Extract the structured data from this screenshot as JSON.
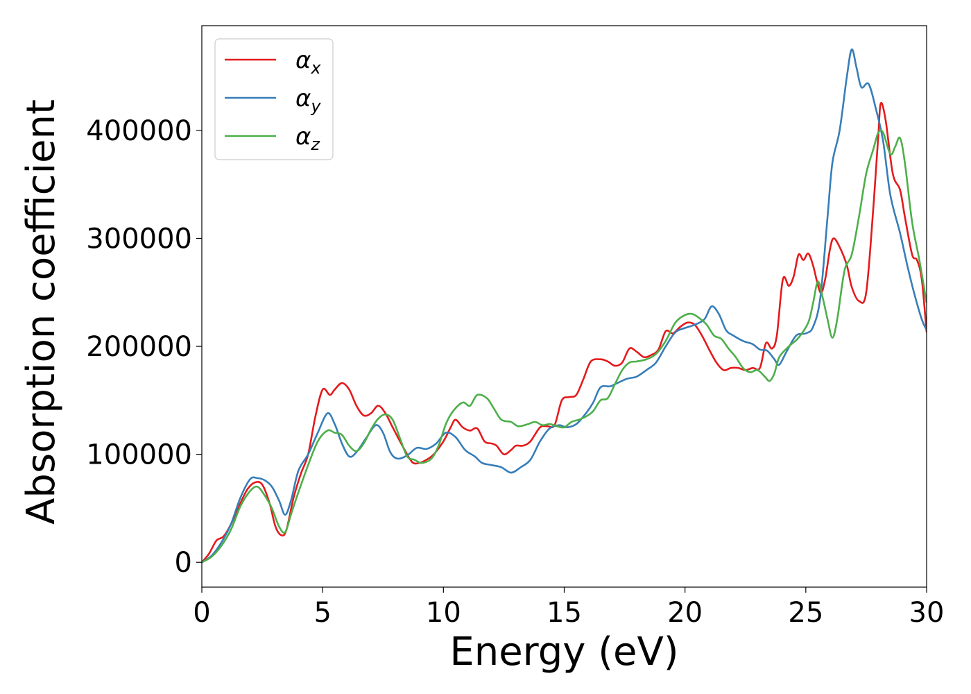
{
  "chart_data": {
    "type": "line",
    "title": "",
    "xlabel": "Energy (eV)",
    "ylabel": "Absorption coefficient",
    "xlim": [
      0,
      30
    ],
    "ylim": [
      -23000,
      497000
    ],
    "xticks": [
      0,
      5,
      10,
      15,
      20,
      25,
      30
    ],
    "xtick_labels": [
      "0",
      "5",
      "10",
      "15",
      "20",
      "25",
      "30"
    ],
    "yticks": [
      0,
      100000,
      200000,
      300000,
      400000
    ],
    "ytick_labels": [
      "0",
      "100000",
      "200000",
      "300000",
      "400000"
    ],
    "grid": false,
    "legend_position": "top-left",
    "series": [
      {
        "name": "α",
        "subscript": "x",
        "color": "#e41a1c",
        "points": [
          [
            0,
            0
          ],
          [
            0.3,
            8000
          ],
          [
            0.6,
            20000
          ],
          [
            0.9,
            24000
          ],
          [
            1.2,
            35000
          ],
          [
            1.6,
            55000
          ],
          [
            1.9,
            68000
          ],
          [
            2.2,
            74000
          ],
          [
            2.5,
            72000
          ],
          [
            2.8,
            55000
          ],
          [
            3.05,
            33000
          ],
          [
            3.3,
            25000
          ],
          [
            3.5,
            30000
          ],
          [
            3.8,
            60000
          ],
          [
            4.1,
            82000
          ],
          [
            4.4,
            100000
          ],
          [
            4.7,
            135000
          ],
          [
            5.0,
            160000
          ],
          [
            5.3,
            155000
          ],
          [
            5.5,
            160000
          ],
          [
            5.8,
            166000
          ],
          [
            6.1,
            160000
          ],
          [
            6.4,
            145000
          ],
          [
            6.7,
            136000
          ],
          [
            7.0,
            138000
          ],
          [
            7.3,
            145000
          ],
          [
            7.6,
            138000
          ],
          [
            7.9,
            125000
          ],
          [
            8.3,
            108000
          ],
          [
            8.7,
            93000
          ],
          [
            9.0,
            92000
          ],
          [
            9.3,
            95000
          ],
          [
            9.6,
            100000
          ],
          [
            10.0,
            112000
          ],
          [
            10.3,
            125000
          ],
          [
            10.5,
            132000
          ],
          [
            10.8,
            125000
          ],
          [
            11.1,
            122000
          ],
          [
            11.4,
            124000
          ],
          [
            11.7,
            112000
          ],
          [
            12.0,
            110000
          ],
          [
            12.2,
            108000
          ],
          [
            12.5,
            100000
          ],
          [
            12.8,
            104000
          ],
          [
            13.0,
            108000
          ],
          [
            13.3,
            108000
          ],
          [
            13.6,
            112000
          ],
          [
            14.0,
            125000
          ],
          [
            14.3,
            126000
          ],
          [
            14.6,
            127000
          ],
          [
            14.9,
            150000
          ],
          [
            15.2,
            153000
          ],
          [
            15.5,
            155000
          ],
          [
            15.8,
            170000
          ],
          [
            16.1,
            186000
          ],
          [
            16.5,
            188000
          ],
          [
            16.8,
            186000
          ],
          [
            17.1,
            182000
          ],
          [
            17.4,
            185000
          ],
          [
            17.7,
            198000
          ],
          [
            18.0,
            195000
          ],
          [
            18.3,
            190000
          ],
          [
            18.6,
            192000
          ],
          [
            18.9,
            197000
          ],
          [
            19.2,
            214000
          ],
          [
            19.5,
            212000
          ],
          [
            19.8,
            218000
          ],
          [
            20.1,
            222000
          ],
          [
            20.4,
            220000
          ],
          [
            20.7,
            210000
          ],
          [
            21.0,
            197000
          ],
          [
            21.3,
            185000
          ],
          [
            21.6,
            178000
          ],
          [
            21.9,
            180000
          ],
          [
            22.2,
            180000
          ],
          [
            22.5,
            178000
          ],
          [
            22.8,
            180000
          ],
          [
            23.1,
            180000
          ],
          [
            23.35,
            203000
          ],
          [
            23.6,
            198000
          ],
          [
            23.8,
            210000
          ],
          [
            24.05,
            262000
          ],
          [
            24.3,
            256000
          ],
          [
            24.5,
            265000
          ],
          [
            24.7,
            285000
          ],
          [
            24.9,
            280000
          ],
          [
            25.1,
            286000
          ],
          [
            25.3,
            275000
          ],
          [
            25.6,
            250000
          ],
          [
            25.8,
            262000
          ],
          [
            26.0,
            290000
          ],
          [
            26.15,
            300000
          ],
          [
            26.4,
            292000
          ],
          [
            26.7,
            275000
          ],
          [
            26.9,
            255000
          ],
          [
            27.2,
            242000
          ],
          [
            27.5,
            250000
          ],
          [
            27.8,
            330000
          ],
          [
            28.0,
            395000
          ],
          [
            28.1,
            425000
          ],
          [
            28.3,
            410000
          ],
          [
            28.6,
            360000
          ],
          [
            28.9,
            345000
          ],
          [
            29.1,
            320000
          ],
          [
            29.4,
            285000
          ],
          [
            29.6,
            280000
          ],
          [
            29.8,
            262000
          ],
          [
            30.0,
            213000
          ]
        ]
      },
      {
        "name": "α",
        "subscript": "y",
        "color": "#377eb8",
        "points": [
          [
            0,
            0
          ],
          [
            0.4,
            6000
          ],
          [
            0.8,
            18000
          ],
          [
            1.2,
            35000
          ],
          [
            1.6,
            60000
          ],
          [
            2.0,
            77000
          ],
          [
            2.3,
            78000
          ],
          [
            2.6,
            76000
          ],
          [
            2.9,
            70000
          ],
          [
            3.2,
            57000
          ],
          [
            3.45,
            44000
          ],
          [
            3.7,
            58000
          ],
          [
            4.0,
            85000
          ],
          [
            4.4,
            100000
          ],
          [
            4.8,
            120000
          ],
          [
            5.2,
            138000
          ],
          [
            5.5,
            128000
          ],
          [
            5.8,
            110000
          ],
          [
            6.1,
            98000
          ],
          [
            6.4,
            102000
          ],
          [
            6.8,
            115000
          ],
          [
            7.2,
            127000
          ],
          [
            7.5,
            120000
          ],
          [
            7.8,
            102000
          ],
          [
            8.1,
            96000
          ],
          [
            8.5,
            99000
          ],
          [
            8.9,
            106000
          ],
          [
            9.3,
            105000
          ],
          [
            9.7,
            110000
          ],
          [
            10.1,
            120000
          ],
          [
            10.5,
            116000
          ],
          [
            10.9,
            104000
          ],
          [
            11.3,
            98000
          ],
          [
            11.6,
            92000
          ],
          [
            12.0,
            90000
          ],
          [
            12.4,
            88000
          ],
          [
            12.8,
            83000
          ],
          [
            13.2,
            88000
          ],
          [
            13.6,
            95000
          ],
          [
            14.0,
            112000
          ],
          [
            14.4,
            124000
          ],
          [
            14.8,
            127000
          ],
          [
            15.1,
            125000
          ],
          [
            15.5,
            128000
          ],
          [
            15.9,
            138000
          ],
          [
            16.2,
            148000
          ],
          [
            16.5,
            162000
          ],
          [
            16.9,
            163000
          ],
          [
            17.2,
            166000
          ],
          [
            17.6,
            170000
          ],
          [
            18.0,
            172000
          ],
          [
            18.4,
            178000
          ],
          [
            18.8,
            185000
          ],
          [
            19.2,
            200000
          ],
          [
            19.6,
            213000
          ],
          [
            20.0,
            217000
          ],
          [
            20.4,
            220000
          ],
          [
            20.8,
            225000
          ],
          [
            21.1,
            237000
          ],
          [
            21.4,
            230000
          ],
          [
            21.7,
            215000
          ],
          [
            22.0,
            210000
          ],
          [
            22.4,
            205000
          ],
          [
            22.8,
            202000
          ],
          [
            23.1,
            197000
          ],
          [
            23.4,
            196000
          ],
          [
            23.7,
            188000
          ],
          [
            23.9,
            183000
          ],
          [
            24.2,
            195000
          ],
          [
            24.6,
            210000
          ],
          [
            25.0,
            212000
          ],
          [
            25.3,
            218000
          ],
          [
            25.6,
            245000
          ],
          [
            25.9,
            320000
          ],
          [
            26.1,
            370000
          ],
          [
            26.4,
            400000
          ],
          [
            26.7,
            450000
          ],
          [
            26.9,
            475000
          ],
          [
            27.1,
            458000
          ],
          [
            27.3,
            440000
          ],
          [
            27.6,
            443000
          ],
          [
            27.9,
            420000
          ],
          [
            28.2,
            390000
          ],
          [
            28.5,
            340000
          ],
          [
            28.9,
            305000
          ],
          [
            29.2,
            275000
          ],
          [
            29.5,
            248000
          ],
          [
            29.8,
            225000
          ],
          [
            30.0,
            215000
          ]
        ]
      },
      {
        "name": "α",
        "subscript": "z",
        "color": "#4daf4a",
        "points": [
          [
            0,
            0
          ],
          [
            0.4,
            5000
          ],
          [
            0.8,
            15000
          ],
          [
            1.2,
            30000
          ],
          [
            1.6,
            52000
          ],
          [
            2.0,
            66000
          ],
          [
            2.3,
            70000
          ],
          [
            2.6,
            62000
          ],
          [
            2.9,
            50000
          ],
          [
            3.2,
            33000
          ],
          [
            3.45,
            28000
          ],
          [
            3.7,
            45000
          ],
          [
            4.0,
            65000
          ],
          [
            4.4,
            90000
          ],
          [
            4.8,
            112000
          ],
          [
            5.2,
            122000
          ],
          [
            5.5,
            120000
          ],
          [
            5.8,
            118000
          ],
          [
            6.1,
            108000
          ],
          [
            6.4,
            103000
          ],
          [
            6.7,
            110000
          ],
          [
            7.0,
            123000
          ],
          [
            7.3,
            133000
          ],
          [
            7.6,
            137000
          ],
          [
            7.9,
            132000
          ],
          [
            8.2,
            115000
          ],
          [
            8.5,
            98000
          ],
          [
            8.8,
            95000
          ],
          [
            9.1,
            92000
          ],
          [
            9.5,
            96000
          ],
          [
            9.8,
            108000
          ],
          [
            10.1,
            128000
          ],
          [
            10.4,
            140000
          ],
          [
            10.8,
            148000
          ],
          [
            11.1,
            145000
          ],
          [
            11.4,
            155000
          ],
          [
            11.8,
            152000
          ],
          [
            12.1,
            142000
          ],
          [
            12.4,
            132000
          ],
          [
            12.8,
            130000
          ],
          [
            13.1,
            126000
          ],
          [
            13.5,
            128000
          ],
          [
            13.8,
            130000
          ],
          [
            14.1,
            127000
          ],
          [
            14.4,
            128000
          ],
          [
            14.7,
            126000
          ],
          [
            15.0,
            125000
          ],
          [
            15.3,
            130000
          ],
          [
            15.6,
            132000
          ],
          [
            15.9,
            135000
          ],
          [
            16.2,
            140000
          ],
          [
            16.5,
            150000
          ],
          [
            16.8,
            152000
          ],
          [
            17.1,
            165000
          ],
          [
            17.4,
            178000
          ],
          [
            17.7,
            185000
          ],
          [
            18.0,
            186000
          ],
          [
            18.4,
            188000
          ],
          [
            18.8,
            193000
          ],
          [
            19.2,
            205000
          ],
          [
            19.6,
            222000
          ],
          [
            20.0,
            229000
          ],
          [
            20.3,
            230000
          ],
          [
            20.6,
            226000
          ],
          [
            20.9,
            220000
          ],
          [
            21.2,
            210000
          ],
          [
            21.5,
            207000
          ],
          [
            21.8,
            198000
          ],
          [
            22.1,
            190000
          ],
          [
            22.4,
            180000
          ],
          [
            22.7,
            176000
          ],
          [
            23.0,
            178000
          ],
          [
            23.3,
            172000
          ],
          [
            23.5,
            168000
          ],
          [
            23.7,
            175000
          ],
          [
            23.9,
            190000
          ],
          [
            24.3,
            200000
          ],
          [
            24.7,
            208000
          ],
          [
            25.1,
            222000
          ],
          [
            25.3,
            240000
          ],
          [
            25.5,
            260000
          ],
          [
            25.7,
            245000
          ],
          [
            25.9,
            225000
          ],
          [
            26.1,
            208000
          ],
          [
            26.3,
            225000
          ],
          [
            26.6,
            270000
          ],
          [
            26.9,
            285000
          ],
          [
            27.2,
            320000
          ],
          [
            27.5,
            360000
          ],
          [
            27.8,
            383000
          ],
          [
            28.0,
            398000
          ],
          [
            28.2,
            398000
          ],
          [
            28.5,
            378000
          ],
          [
            28.7,
            385000
          ],
          [
            28.9,
            393000
          ],
          [
            29.1,
            370000
          ],
          [
            29.4,
            315000
          ],
          [
            29.7,
            280000
          ],
          [
            30.0,
            240000
          ]
        ]
      }
    ]
  }
}
